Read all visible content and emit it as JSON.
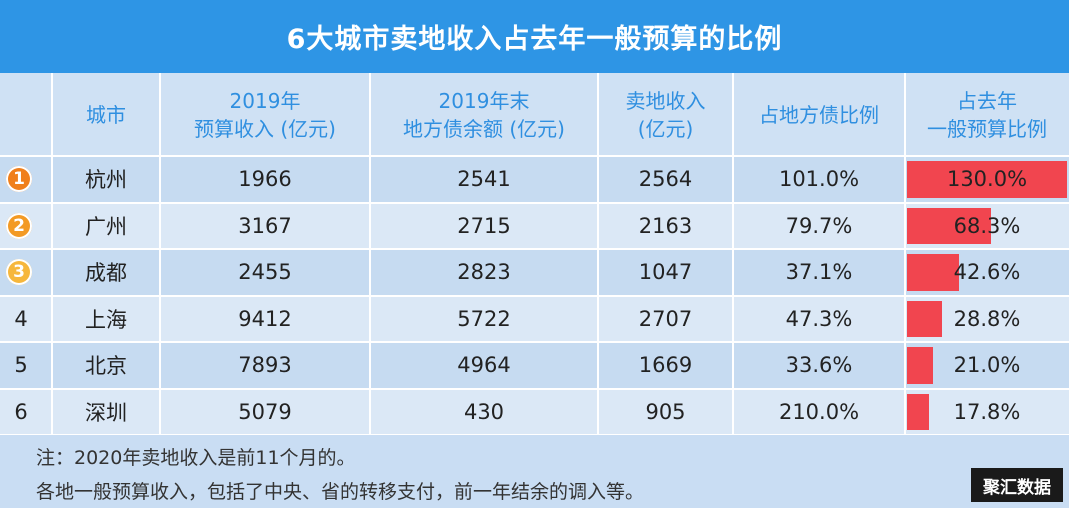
{
  "title": "6大城市卖地收入占去年一般预算的比例",
  "headers": {
    "city": "城市",
    "budget": [
      "2019年",
      "预算收入 (亿元)"
    ],
    "debt": [
      "2019年末",
      "地方债余额 (亿元)"
    ],
    "land": [
      "卖地收入",
      "(亿元)"
    ],
    "debt_ratio": "占地方债比例",
    "budget_ratio": [
      "占去年",
      "一般预算比例"
    ]
  },
  "rows": [
    {
      "rank": "1",
      "city": "杭州",
      "budget": "1966",
      "debt": "2541",
      "land": "2564",
      "debt_ratio": "101.0%",
      "budget_ratio": "130.0%"
    },
    {
      "rank": "2",
      "city": "广州",
      "budget": "3167",
      "debt": "2715",
      "land": "2163",
      "debt_ratio": "79.7%",
      "budget_ratio": "68.3%"
    },
    {
      "rank": "3",
      "city": "成都",
      "budget": "2455",
      "debt": "2823",
      "land": "1047",
      "debt_ratio": "37.1%",
      "budget_ratio": "42.6%"
    },
    {
      "rank": "4",
      "city": "上海",
      "budget": "9412",
      "debt": "5722",
      "land": "2707",
      "debt_ratio": "47.3%",
      "budget_ratio": "28.8%"
    },
    {
      "rank": "5",
      "city": "北京",
      "budget": "7893",
      "debt": "4964",
      "land": "1669",
      "debt_ratio": "33.6%",
      "budget_ratio": "21.0%"
    },
    {
      "rank": "6",
      "city": "深圳",
      "budget": "5079",
      "debt": "430",
      "land": "905",
      "debt_ratio": "210.0%",
      "budget_ratio": "17.8%"
    }
  ],
  "notes": [
    "注：2020年卖地收入是前11个月的。",
    "各地一般预算收入，包括了中央、省的转移支付，前一年结余的调入等。"
  ],
  "logo": "聚汇数据",
  "colors": {
    "header_blue": "#2e95e5",
    "bar_red": "#f1454f",
    "badge_1": "#f07f1b",
    "badge_2": "#f39a24",
    "badge_3": "#f6b73c"
  },
  "chart_data": {
    "type": "table",
    "title": "6大城市卖地收入占去年一般预算的比例",
    "columns": [
      "城市",
      "2019年预算收入 (亿元)",
      "2019年末地方债余额 (亿元)",
      "卖地收入(亿元)",
      "占地方债比例",
      "占去年一般预算比例"
    ],
    "categories": [
      "杭州",
      "广州",
      "成都",
      "上海",
      "北京",
      "深圳"
    ],
    "series": [
      {
        "name": "2019年预算收入 (亿元)",
        "values": [
          1966,
          3167,
          2455,
          9412,
          7893,
          5079
        ]
      },
      {
        "name": "2019年末地方债余额 (亿元)",
        "values": [
          2541,
          2715,
          2823,
          5722,
          4964,
          430
        ]
      },
      {
        "name": "卖地收入 (亿元)",
        "values": [
          2564,
          2163,
          1047,
          2707,
          1669,
          905
        ]
      },
      {
        "name": "占地方债比例",
        "values": [
          101.0,
          79.7,
          37.1,
          47.3,
          33.6,
          210.0
        ]
      },
      {
        "name": "占去年一般预算比例",
        "values": [
          130.0,
          68.3,
          42.6,
          28.8,
          21.0,
          17.8
        ]
      }
    ]
  }
}
